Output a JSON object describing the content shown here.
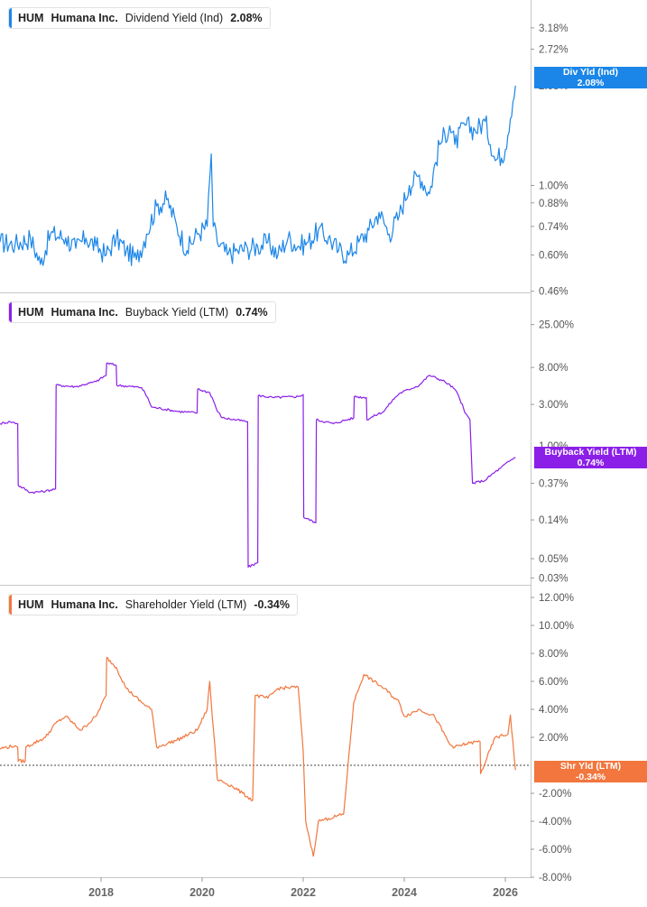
{
  "chart_data": [
    {
      "type": "line",
      "title": "HUM  Humana Inc.  Dividend Yield (Ind)  2.08%",
      "legend": {
        "ticker": "HUM",
        "company": "Humana Inc.",
        "metric": "Dividend Yield (Ind)",
        "value": "2.08%"
      },
      "color": "#1b86e8",
      "scale": "log",
      "ylim": [
        0.45,
        3.7
      ],
      "yticks": [
        {
          "v": 3.18,
          "label": "3.18%"
        },
        {
          "v": 2.72,
          "label": "2.72%"
        },
        {
          "v": 1.0,
          "label": "1.00%"
        },
        {
          "v": 0.88,
          "label": "0.88%"
        },
        {
          "v": 0.74,
          "label": "0.74%"
        },
        {
          "v": 0.6,
          "label": "0.60%"
        },
        {
          "v": 0.46,
          "label": "0.46%"
        }
      ],
      "hidden_tick": {
        "v": 2.08,
        "label": "2.08%"
      },
      "current": {
        "label": "Div Yld (Ind)",
        "value": "2.08%",
        "v": 2.08
      },
      "series": [
        {
          "name": "Dividend Yield (Ind)",
          "x": [
            2016.0,
            2016.3,
            2016.6,
            2016.8,
            2017.0,
            2017.3,
            2017.5,
            2017.7,
            2017.9,
            2018.1,
            2018.3,
            2018.5,
            2018.7,
            2018.9,
            2019.1,
            2019.3,
            2019.5,
            2019.7,
            2019.9,
            2020.1,
            2020.18,
            2020.22,
            2020.3,
            2020.5,
            2020.7,
            2020.9,
            2021.1,
            2021.3,
            2021.5,
            2021.7,
            2021.9,
            2022.1,
            2022.3,
            2022.5,
            2022.7,
            2022.9,
            2023.1,
            2023.3,
            2023.5,
            2023.7,
            2023.9,
            2024.1,
            2024.3,
            2024.5,
            2024.7,
            2024.9,
            2025.0,
            2025.2,
            2025.4,
            2025.6,
            2025.8,
            2026.0,
            2026.2
          ],
          "values": [
            0.66,
            0.65,
            0.68,
            0.56,
            0.7,
            0.68,
            0.63,
            0.68,
            0.64,
            0.6,
            0.68,
            0.62,
            0.58,
            0.7,
            0.86,
            0.9,
            0.74,
            0.62,
            0.7,
            0.74,
            1.26,
            0.74,
            0.66,
            0.6,
            0.62,
            0.63,
            0.64,
            0.66,
            0.6,
            0.68,
            0.64,
            0.66,
            0.72,
            0.68,
            0.62,
            0.6,
            0.66,
            0.72,
            0.82,
            0.7,
            0.8,
            1.0,
            1.08,
            0.94,
            1.35,
            1.55,
            1.35,
            1.56,
            1.5,
            1.6,
            1.2,
            1.3,
            2.08
          ]
        }
      ]
    },
    {
      "type": "line",
      "title": "HUM  Humana Inc.  Buyback Yield (LTM)  0.74%",
      "legend": {
        "ticker": "HUM",
        "company": "Humana Inc.",
        "metric": "Buyback Yield (LTM)",
        "value": "0.74%"
      },
      "color": "#8b1fe8",
      "scale": "log",
      "ylim": [
        0.025,
        40
      ],
      "yticks": [
        {
          "v": 25.0,
          "label": "25.00%"
        },
        {
          "v": 8.0,
          "label": "8.00%"
        },
        {
          "v": 3.0,
          "label": "3.00%"
        },
        {
          "v": 0.37,
          "label": "0.37%"
        },
        {
          "v": 0.14,
          "label": "0.14%"
        },
        {
          "v": 0.05,
          "label": "0.05%"
        },
        {
          "v": 0.03,
          "label": "0.03%"
        }
      ],
      "hidden_tick": {
        "v": 1.0,
        "label": "1.00%"
      },
      "current": {
        "label": "Buyback Yield (LTM)",
        "value": "0.74%",
        "v": 0.74
      },
      "series": [
        {
          "name": "Buyback Yield (LTM)",
          "x": [
            2016.0,
            2016.2,
            2016.35,
            2016.36,
            2016.6,
            2016.9,
            2017.1,
            2017.11,
            2017.5,
            2017.9,
            2018.1,
            2018.11,
            2018.3,
            2018.31,
            2018.8,
            2019.0,
            2019.5,
            2019.9,
            2019.91,
            2020.15,
            2020.3,
            2020.4,
            2020.9,
            2020.91,
            2021.1,
            2021.11,
            2021.4,
            2021.9,
            2022.0,
            2022.01,
            2022.25,
            2022.26,
            2022.6,
            2023.0,
            2023.01,
            2023.25,
            2023.26,
            2023.6,
            2023.9,
            2024.3,
            2024.5,
            2024.8,
            2025.0,
            2025.2,
            2025.3,
            2025.35,
            2025.6,
            2025.9,
            2026.2
          ],
          "values": [
            1.8,
            1.9,
            1.8,
            0.35,
            0.29,
            0.3,
            0.32,
            5.0,
            4.8,
            5.5,
            6.5,
            9.0,
            8.5,
            5.0,
            4.7,
            2.8,
            2.5,
            2.4,
            4.5,
            4.1,
            2.5,
            2.1,
            1.9,
            0.04,
            0.045,
            3.8,
            3.6,
            3.7,
            3.9,
            0.15,
            0.13,
            2.0,
            1.8,
            2.1,
            3.7,
            3.6,
            2.0,
            2.5,
            4.0,
            5.0,
            6.5,
            5.5,
            4.5,
            2.4,
            2.0,
            0.37,
            0.4,
            0.55,
            0.74
          ]
        }
      ]
    },
    {
      "type": "line",
      "title": "HUM  Humana Inc.  Shareholder Yield (LTM)  -0.34%",
      "legend": {
        "ticker": "HUM",
        "company": "Humana Inc.",
        "metric": "Shareholder Yield (LTM)",
        "value": "-0.34%"
      },
      "color": "#f2763d",
      "scale": "linear",
      "ylim": [
        -8.0,
        12.0
      ],
      "yticks": [
        {
          "v": 12,
          "label": "12.00%"
        },
        {
          "v": 10,
          "label": "10.00%"
        },
        {
          "v": 8,
          "label": "8.00%"
        },
        {
          "v": 6,
          "label": "6.00%"
        },
        {
          "v": 4,
          "label": "4.00%"
        },
        {
          "v": 2,
          "label": "2.00%"
        },
        {
          "v": -2,
          "label": "-2.00%"
        },
        {
          "v": -4,
          "label": "-4.00%"
        },
        {
          "v": -6,
          "label": "-6.00%"
        },
        {
          "v": -8,
          "label": "-8.00%"
        }
      ],
      "hidden_tick": {
        "v": 0,
        "label": "0.00%"
      },
      "zero_line": 0,
      "current": {
        "label": "Shr Yld (LTM)",
        "value": "-0.34%",
        "v": -0.34
      },
      "series": [
        {
          "name": "Shareholder Yield (LTM)",
          "x": [
            2016.0,
            2016.3,
            2016.35,
            2016.36,
            2016.5,
            2016.51,
            2016.9,
            2017.1,
            2017.3,
            2017.6,
            2017.9,
            2018.1,
            2018.11,
            2018.3,
            2018.5,
            2018.8,
            2019.0,
            2019.1,
            2019.5,
            2019.9,
            2020.1,
            2020.15,
            2020.2,
            2020.25,
            2020.3,
            2020.6,
            2020.8,
            2021.0,
            2021.05,
            2021.3,
            2021.5,
            2021.9,
            2022.0,
            2022.05,
            2022.2,
            2022.3,
            2022.5,
            2022.8,
            2023.0,
            2023.2,
            2023.6,
            2023.9,
            2024.0,
            2024.3,
            2024.6,
            2024.9,
            2025.0,
            2025.3,
            2025.5,
            2025.51,
            2025.8,
            2026.05,
            2026.1,
            2026.2
          ],
          "values": [
            1.2,
            1.4,
            1.3,
            0.3,
            0.3,
            1.3,
            2.0,
            3.0,
            3.5,
            2.5,
            3.5,
            5.0,
            7.7,
            7.0,
            5.5,
            4.5,
            4.0,
            1.3,
            1.8,
            2.5,
            4.0,
            6.0,
            3.5,
            1.5,
            -1.0,
            -1.5,
            -2.0,
            -2.5,
            5.0,
            4.8,
            5.5,
            5.6,
            1.0,
            -4.0,
            -6.5,
            -4.0,
            -3.8,
            -3.5,
            4.5,
            6.5,
            5.5,
            4.5,
            3.5,
            4.0,
            3.5,
            1.5,
            1.3,
            1.6,
            1.7,
            -0.6,
            2.0,
            2.2,
            3.6,
            -0.34
          ]
        }
      ]
    }
  ],
  "x_axis": {
    "ylim_note": "",
    "ticks": [
      {
        "v": 2018,
        "label": "2018"
      },
      {
        "v": 2020,
        "label": "2020"
      },
      {
        "v": 2022,
        "label": "2022"
      },
      {
        "v": 2024,
        "label": "2024"
      },
      {
        "v": 2026,
        "label": "2026"
      }
    ],
    "range": [
      2016.0,
      2026.5
    ]
  },
  "colors": {
    "axis": "#c8c8c8",
    "tick_text": "#555555",
    "grid": "#e4e4e4"
  }
}
